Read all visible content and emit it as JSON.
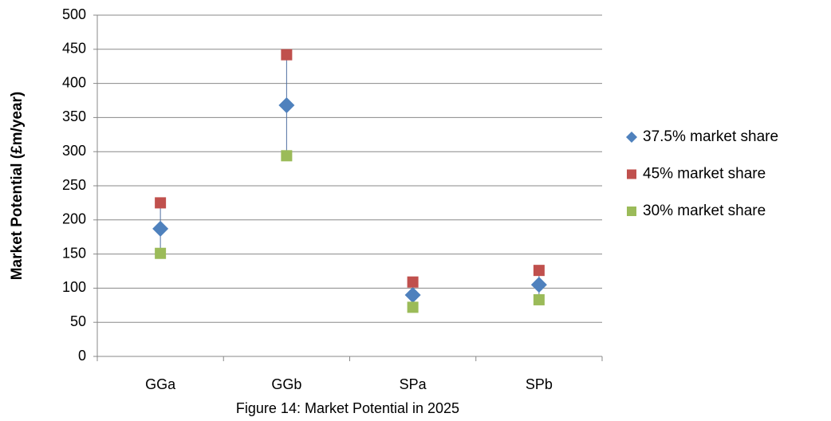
{
  "chart_data": {
    "type": "scatter",
    "caption": "Figure 14: Market Potential in 2025",
    "y_label": "Market Potential (£m/year)",
    "categories": [
      "GGa",
      "GGb",
      "SPa",
      "SPb"
    ],
    "series": [
      {
        "name": "37.5% market share",
        "color": "#4f81bd",
        "marker": "diamond",
        "values": [
          187,
          368,
          90,
          105
        ]
      },
      {
        "name": "45% market share",
        "color": "#c0504d",
        "marker": "square",
        "values": [
          225,
          442,
          109,
          126
        ]
      },
      {
        "name": "30% market share",
        "color": "#9bbb59",
        "marker": "square",
        "values": [
          151,
          294,
          72,
          83
        ]
      }
    ],
    "high_low_lines": true,
    "ylim": [
      0,
      500
    ],
    "yticks": [
      0,
      50,
      100,
      150,
      200,
      250,
      300,
      350,
      400,
      450,
      500
    ],
    "grid": true,
    "legend": "right"
  }
}
